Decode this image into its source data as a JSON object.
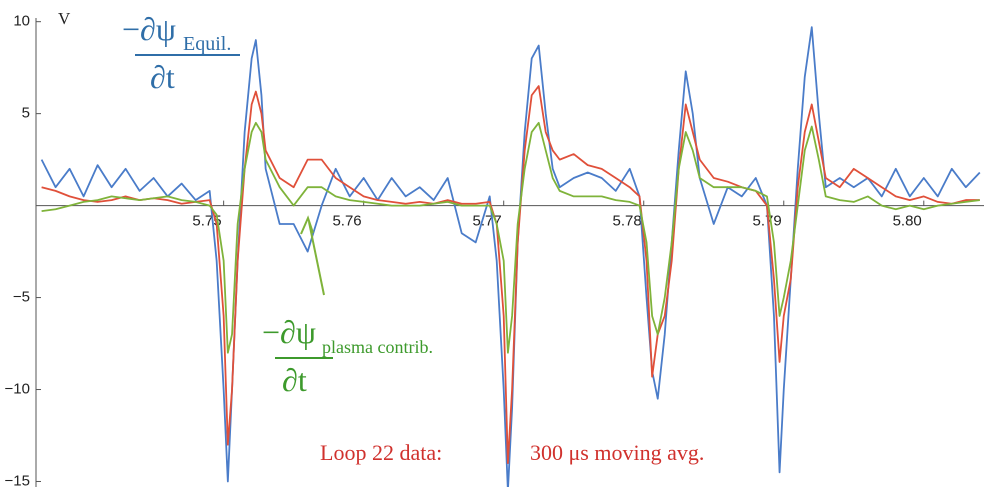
{
  "chart_data": {
    "type": "line",
    "y_label": "V",
    "x": [
      5.737,
      5.738,
      5.739,
      5.74,
      5.741,
      5.742,
      5.743,
      5.744,
      5.745,
      5.746,
      5.747,
      5.748,
      5.749,
      5.7495,
      5.75,
      5.7503,
      5.7506,
      5.751,
      5.7515,
      5.752,
      5.7523,
      5.7527,
      5.753,
      5.754,
      5.755,
      5.756,
      5.757,
      5.758,
      5.759,
      5.76,
      5.761,
      5.762,
      5.763,
      5.764,
      5.765,
      5.766,
      5.767,
      5.768,
      5.769,
      5.7695,
      5.77,
      5.7703,
      5.7706,
      5.771,
      5.7715,
      5.772,
      5.7725,
      5.773,
      5.7735,
      5.774,
      5.775,
      5.776,
      5.777,
      5.778,
      5.779,
      5.7797,
      5.7802,
      5.7806,
      5.781,
      5.7815,
      5.782,
      5.7825,
      5.783,
      5.7835,
      5.784,
      5.785,
      5.786,
      5.787,
      5.788,
      5.7888,
      5.7893,
      5.7897,
      5.79,
      5.7905,
      5.791,
      5.7915,
      5.792,
      5.7925,
      5.793,
      5.794,
      5.795,
      5.796,
      5.797,
      5.798,
      5.799,
      5.8,
      5.801,
      5.802,
      5.803,
      5.804
    ],
    "series": [
      {
        "color": "#4a7cc9",
        "values": [
          2.5,
          1.0,
          2.0,
          0.5,
          2.2,
          1.0,
          2.0,
          0.8,
          1.5,
          0.5,
          1.2,
          0.3,
          0.8,
          -3,
          -10,
          -15,
          -10,
          -3,
          4,
          8,
          9,
          6,
          2,
          -1,
          -1,
          -2.5,
          0,
          2,
          0.5,
          1.5,
          0.3,
          1.5,
          0.5,
          1.0,
          0.3,
          1.5,
          -1.5,
          -2,
          0.5,
          -3,
          -10,
          -15.5,
          -11,
          -2,
          4,
          8,
          8.7,
          5,
          2,
          1,
          1.5,
          1.8,
          1.5,
          0.8,
          2.0,
          0.5,
          -5,
          -9,
          -10.5,
          -7,
          -2,
          3,
          7.3,
          5,
          1.5,
          -1,
          1,
          0.5,
          1.5,
          0,
          -6,
          -14.5,
          -10,
          -4,
          2,
          7,
          9.7,
          5,
          1,
          1.5,
          1.0,
          1.5,
          0.5,
          2.0,
          0.5,
          1.5,
          0.5,
          2.0,
          1.0,
          1.8
        ]
      },
      {
        "color": "#e0503a",
        "values": [
          1.0,
          0.8,
          0.5,
          0.3,
          0.2,
          0.3,
          0.5,
          0.3,
          0.4,
          0.3,
          0.1,
          0.2,
          0.3,
          -1,
          -6,
          -13,
          -10,
          -3,
          2,
          5.5,
          6.2,
          5,
          3,
          1.5,
          1,
          2.5,
          2.5,
          1.5,
          1.0,
          0.5,
          0.3,
          0.2,
          0.1,
          0.2,
          0.1,
          0.3,
          0.1,
          0.1,
          0.2,
          -1,
          -6,
          -14,
          -10,
          -2,
          3,
          6,
          6.5,
          4,
          3,
          2.5,
          2.8,
          2.2,
          2.0,
          1.5,
          1.0,
          0.5,
          -3,
          -9.3,
          -7,
          -6,
          -3,
          2,
          5.5,
          4,
          2.5,
          1.5,
          1.3,
          1.0,
          0.8,
          0,
          -4,
          -8.5,
          -6,
          -4,
          1,
          4,
          5.5,
          3.5,
          1.5,
          1.0,
          2.0,
          1.5,
          1.0,
          0.5,
          0.3,
          0.5,
          0.2,
          0.1,
          0.3,
          0.3
        ]
      },
      {
        "color": "#7fb33a",
        "values": [
          -0.3,
          -0.2,
          0,
          0.2,
          0.3,
          0.5,
          0.4,
          0.3,
          0.4,
          0.5,
          0.3,
          0.2,
          0,
          -0.5,
          -3,
          -8,
          -7,
          -1,
          2,
          4,
          4.5,
          4,
          2.5,
          1,
          0,
          1,
          1,
          0.5,
          0.3,
          0.2,
          0.1,
          0,
          0,
          0,
          0.1,
          0.2,
          0,
          0,
          0,
          -1,
          -3,
          -8,
          -6,
          -1,
          2,
          4,
          4.5,
          3,
          1.5,
          0.8,
          0.5,
          0.5,
          0.5,
          0.3,
          0.2,
          0,
          -2,
          -6,
          -7,
          -5,
          -2,
          2,
          4,
          3,
          1.5,
          1,
          1,
          1,
          0.8,
          0.5,
          -2,
          -6,
          -5,
          -3,
          0,
          3,
          4.3,
          2.5,
          0.5,
          0.3,
          0.2,
          0.5,
          0,
          -0.2,
          0,
          -0.2,
          0,
          0.1,
          0.2,
          0.3
        ]
      }
    ],
    "xlim": [
      5.7366,
      5.8043
    ],
    "ylim": [
      -15.3,
      10.2
    ],
    "xticks": [
      5.75,
      5.76,
      5.77,
      5.78,
      5.79,
      {
        "value": 5.8,
        "label": "5.80"
      }
    ],
    "yticks": [
      10,
      5,
      {
        "value": -5,
        "label": "−5"
      },
      {
        "value": -10,
        "label": "−10"
      },
      {
        "value": -15,
        "label": "−15"
      }
    ],
    "annotations": [
      {
        "numerator": "−∂ψ",
        "subscript": "Equil.",
        "denominator": "∂t"
      },
      {
        "numerator": "−∂ψ",
        "subscript": "plasma contrib.",
        "denominator": "∂t"
      },
      {
        "text": "Loop 22 data:"
      },
      {
        "text": "300 μs moving avg."
      }
    ]
  }
}
